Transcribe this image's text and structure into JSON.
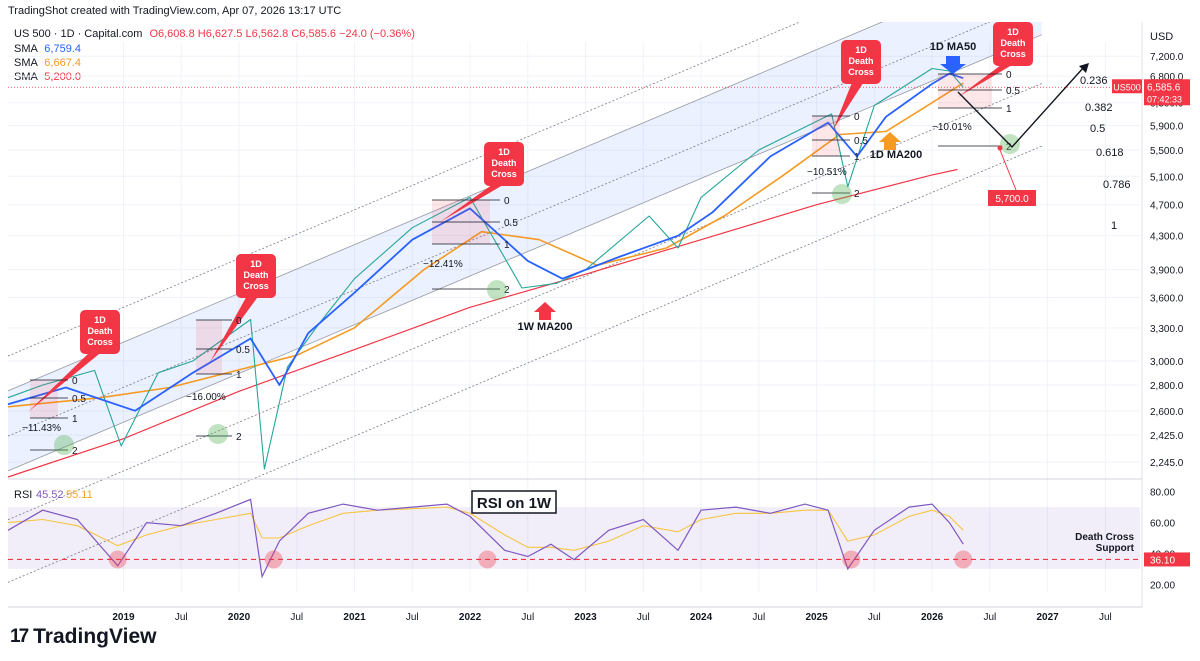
{
  "header": {
    "text": "TradingShot created with TradingView.com, Apr 07, 2026 13:17 UTC"
  },
  "legend": {
    "symbol": "US 500 · 1D · Capital.com",
    "ohlc": "O6,608.8  H6,627.5  L6,562.8  C6,585.6  −24.0 (−0.36%)",
    "sma": [
      {
        "label": "SMA",
        "value": "6,759.4",
        "color": "#2962ff"
      },
      {
        "label": "SMA",
        "value": "6,667.4",
        "color": "#f59a23"
      },
      {
        "label": "SMA",
        "value": "5,200.0",
        "color": "#f23645"
      }
    ]
  },
  "logo": {
    "text": "TradingView"
  },
  "chart_data": {
    "type": "line",
    "currency_label": "USD",
    "x_ticks": [
      "2019",
      "Jul",
      "2020",
      "Jul",
      "2021",
      "Jul",
      "2022",
      "Jul",
      "2023",
      "Jul",
      "2024",
      "Jul",
      "2025",
      "Jul",
      "2026",
      "Jul",
      "2027",
      "Jul"
    ],
    "y_ticks": [
      2245,
      2425,
      2600,
      2800,
      3000,
      3300,
      3600,
      3900,
      4300,
      4700,
      5100,
      5500,
      5900,
      6300,
      6800,
      7200
    ],
    "y_tick_labels": [
      "2,245.0",
      "2,425.0",
      "2,600.0",
      "2,800.0",
      "3,000.0",
      "3,300.0",
      "3,600.0",
      "3,900.0",
      "4,300.0",
      "4,700.0",
      "5,100.0",
      "5,500.0",
      "5,900.0",
      "6,300.0",
      "6,800.0",
      "7,200.0"
    ],
    "price": {
      "x": [
        2018.0,
        2018.3,
        2018.75,
        2018.98,
        2019.3,
        2019.6,
        2020.1,
        2020.22,
        2020.42,
        2020.7,
        2021.0,
        2021.5,
        2022.0,
        2022.45,
        2022.75,
        2023.0,
        2023.55,
        2023.8,
        2024.0,
        2024.5,
        2025.13,
        2025.27,
        2025.5,
        2026.0,
        2026.15,
        2026.27
      ],
      "y": [
        2700,
        2800,
        2920,
        2350,
        2900,
        3000,
        3380,
        2200,
        2950,
        3350,
        3800,
        4400,
        4800,
        3700,
        3750,
        3900,
        4550,
        4150,
        4800,
        5500,
        6100,
        4950,
        6250,
        6950,
        6900,
        6585.6
      ]
    },
    "sma_50": {
      "x": [
        2018.0,
        2018.5,
        2019.1,
        2019.6,
        2020.1,
        2020.35,
        2020.6,
        2021.0,
        2021.5,
        2022.0,
        2022.5,
        2022.8,
        2023.3,
        2023.8,
        2024.1,
        2024.6,
        2025.1,
        2025.35,
        2025.6,
        2026.0,
        2026.15,
        2026.27
      ],
      "y": [
        2650,
        2780,
        2600,
        2900,
        3200,
        2800,
        3250,
        3650,
        4250,
        4650,
        4000,
        3800,
        4050,
        4300,
        4600,
        5400,
        5950,
        5400,
        6050,
        6650,
        6850,
        6760
      ]
    },
    "sma_200": {
      "x": [
        2018.0,
        2018.8,
        2019.4,
        2020.1,
        2020.5,
        2021.0,
        2021.6,
        2022.1,
        2022.6,
        2023.1,
        2023.7,
        2024.2,
        2024.7,
        2025.2,
        2025.6,
        2026.0,
        2026.27
      ],
      "y": [
        2630,
        2700,
        2780,
        2950,
        3050,
        3300,
        3900,
        4350,
        4250,
        3950,
        4150,
        4550,
        5100,
        5750,
        5800,
        6300,
        6667
      ]
    },
    "w_ma200": {
      "x": [
        2018.0,
        2019.0,
        2020.0,
        2021.0,
        2022.0,
        2023.0,
        2024.0,
        2025.0,
        2026.0,
        2026.22
      ],
      "y": [
        2150,
        2400,
        2750,
        3100,
        3500,
        3850,
        4250,
        4700,
        5120,
        5200
      ]
    },
    "fib_channel_levels": [
      "0.236",
      "0.382",
      "0.5",
      "0.618",
      "0.786",
      "1"
    ],
    "annotations": [
      {
        "type": "death-cross",
        "text": [
          "1D",
          "Death",
          "Cross"
        ]
      },
      {
        "type": "death-cross",
        "text": [
          "1D",
          "Death",
          "Cross"
        ]
      },
      {
        "type": "death-cross",
        "text": [
          "1D",
          "Death",
          "Cross"
        ]
      },
      {
        "type": "death-cross",
        "text": [
          "1D",
          "Death",
          "Cross"
        ]
      },
      {
        "type": "death-cross",
        "text": [
          "1D",
          "Death",
          "Cross"
        ]
      }
    ],
    "corrections": [
      "−11.43%",
      "−16.00%",
      "−12.41%",
      "−10.51%",
      "−10.01%"
    ],
    "fib_labels": [
      "0",
      "0.5",
      "1",
      "2"
    ],
    "labels": {
      "ma50": "1D MA50",
      "ma200": "1D MA200",
      "w_ma200": "1W MA200",
      "target": "5,700.0"
    },
    "price_tag": {
      "symbol": "US500",
      "price": "6,585.6",
      "time": "07:42:33"
    },
    "rsi": {
      "label": "RSI",
      "value_1": "45.52",
      "value_2": "55.11",
      "title": "RSI on 1W",
      "ticks": [
        "80.00",
        "60.00",
        "40.00",
        "20.00"
      ],
      "support_label": [
        "Death Cross",
        "Support"
      ],
      "support_value": "36.10",
      "x": [
        2018.0,
        2018.3,
        2018.6,
        2018.95,
        2019.2,
        2019.5,
        2019.8,
        2020.1,
        2020.2,
        2020.35,
        2020.6,
        2020.9,
        2021.2,
        2021.5,
        2021.8,
        2022.0,
        2022.3,
        2022.5,
        2022.7,
        2022.9,
        2023.2,
        2023.5,
        2023.8,
        2024.0,
        2024.3,
        2024.6,
        2024.9,
        2025.1,
        2025.27,
        2025.5,
        2025.8,
        2026.0,
        2026.15,
        2026.27
      ],
      "y": [
        55,
        68,
        62,
        32,
        60,
        58,
        66,
        75,
        25,
        48,
        66,
        72,
        68,
        70,
        72,
        64,
        42,
        38,
        46,
        36,
        55,
        62,
        42,
        68,
        70,
        66,
        72,
        68,
        30,
        55,
        70,
        72,
        60,
        46
      ],
      "signal": [
        60,
        62,
        58,
        45,
        52,
        58,
        62,
        66,
        50,
        50,
        58,
        66,
        68,
        69,
        70,
        66,
        52,
        44,
        44,
        42,
        48,
        58,
        54,
        62,
        66,
        66,
        68,
        68,
        48,
        52,
        64,
        68,
        64,
        55
      ]
    },
    "rsi_circles_x": [
      2018.95,
      2020.3,
      2022.15,
      2025.3,
      2026.27
    ]
  }
}
